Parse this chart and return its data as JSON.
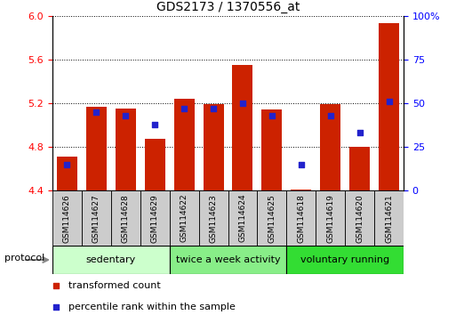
{
  "title": "GDS2173 / 1370556_at",
  "samples": [
    "GSM114626",
    "GSM114627",
    "GSM114628",
    "GSM114629",
    "GSM114622",
    "GSM114623",
    "GSM114624",
    "GSM114625",
    "GSM114618",
    "GSM114619",
    "GSM114620",
    "GSM114621"
  ],
  "transformed_count": [
    4.71,
    5.17,
    5.15,
    4.87,
    5.24,
    5.19,
    5.55,
    5.14,
    4.41,
    5.19,
    4.8,
    5.93
  ],
  "percentile_rank": [
    15,
    45,
    43,
    38,
    47,
    47,
    50,
    43,
    15,
    43,
    33,
    51
  ],
  "ylim_left": [
    4.4,
    6.0
  ],
  "ylim_right": [
    0,
    100
  ],
  "yticks_left": [
    4.4,
    4.8,
    5.2,
    5.6,
    6.0
  ],
  "yticks_right": [
    0,
    25,
    50,
    75,
    100
  ],
  "bar_color": "#cc2200",
  "dot_color": "#2222cc",
  "bar_bottom": 4.4,
  "groups": [
    {
      "label": "sedentary",
      "start": 0,
      "end": 3,
      "color": "#ccffcc"
    },
    {
      "label": "twice a week activity",
      "start": 4,
      "end": 7,
      "color": "#88ee88"
    },
    {
      "label": "voluntary running",
      "start": 8,
      "end": 11,
      "color": "#33dd33"
    }
  ],
  "protocol_label": "protocol",
  "legend_items": [
    {
      "color": "#cc2200",
      "label": "transformed count"
    },
    {
      "color": "#2222cc",
      "label": "percentile rank within the sample"
    }
  ],
  "bar_width": 0.7,
  "xlabel_box_color": "#cccccc",
  "xlabel_box_height": 0.08,
  "tick_label_fontsize": 6.5,
  "title_fontsize": 10
}
